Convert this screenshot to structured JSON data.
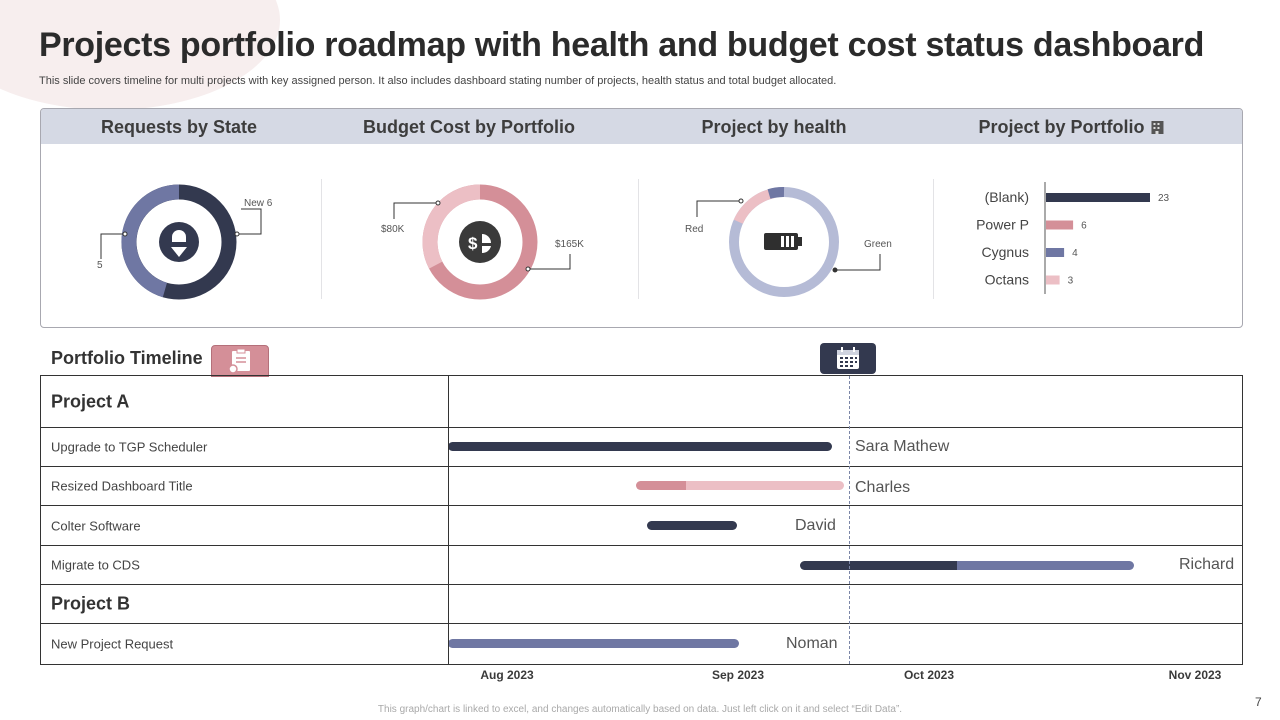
{
  "title": "Projects portfolio roadmap with health and budget cost status dashboard",
  "subtitle": "This slide covers timeline for multi projects with key assigned person. It also includes dashboard stating number of projects, health status and total budget allocated.",
  "colors": {
    "navy": "#33394f",
    "slate": "#6f77a3",
    "lavender": "#b5bbd6",
    "rose": "#d48f98",
    "pink": "#ecbfc5",
    "header": "#d5d9e4"
  },
  "panels": {
    "requests_by_state": {
      "title": "Requests by State",
      "icon": "location-pin-alert-icon",
      "segments": [
        {
          "label": "New 6",
          "value": 6
        },
        {
          "label": "5",
          "value": 5
        }
      ]
    },
    "budget_cost": {
      "title": "Budget Cost by Portfolio",
      "icon": "dollar-pie-icon",
      "segments": [
        {
          "label": "$165K",
          "value": 165
        },
        {
          "label": "$80K",
          "value": 80
        }
      ]
    },
    "project_health": {
      "title": "Project by health",
      "icon": "battery-icon",
      "segments": [
        {
          "label": "Green",
          "value": 17
        },
        {
          "label": "Red",
          "value": 3
        }
      ]
    },
    "project_portfolio": {
      "title": "Project by Portfolio",
      "icon": "building-icon"
    }
  },
  "chart_data": {
    "type": "bar",
    "orientation": "horizontal",
    "title": "Project by Portfolio",
    "categories": [
      "(Blank)",
      "Power P",
      "Cygnus",
      "Octans"
    ],
    "values": [
      23,
      6,
      4,
      3
    ]
  },
  "timeline": {
    "title": "Portfolio Timeline",
    "months": [
      "Aug 2023",
      "Sep 2023",
      "Oct 2023",
      "Nov 2023"
    ],
    "groups": [
      {
        "name": "Project A",
        "tasks": [
          {
            "name": "Upgrade to TGP Scheduler",
            "owner": "Sara Mathew"
          },
          {
            "name": "Resized Dashboard Title",
            "owner": "Charles"
          },
          {
            "name": "Colter Software",
            "owner": "David"
          },
          {
            "name": "Migrate to CDS",
            "owner": "Richard"
          }
        ]
      },
      {
        "name": "Project B",
        "tasks": [
          {
            "name": "New Project Request",
            "owner": "Noman"
          }
        ]
      }
    ]
  },
  "footer": "This graph/chart is linked to excel,  and changes automatically based on data. Just left click on it and select “Edit Data”.",
  "page_number": "7"
}
